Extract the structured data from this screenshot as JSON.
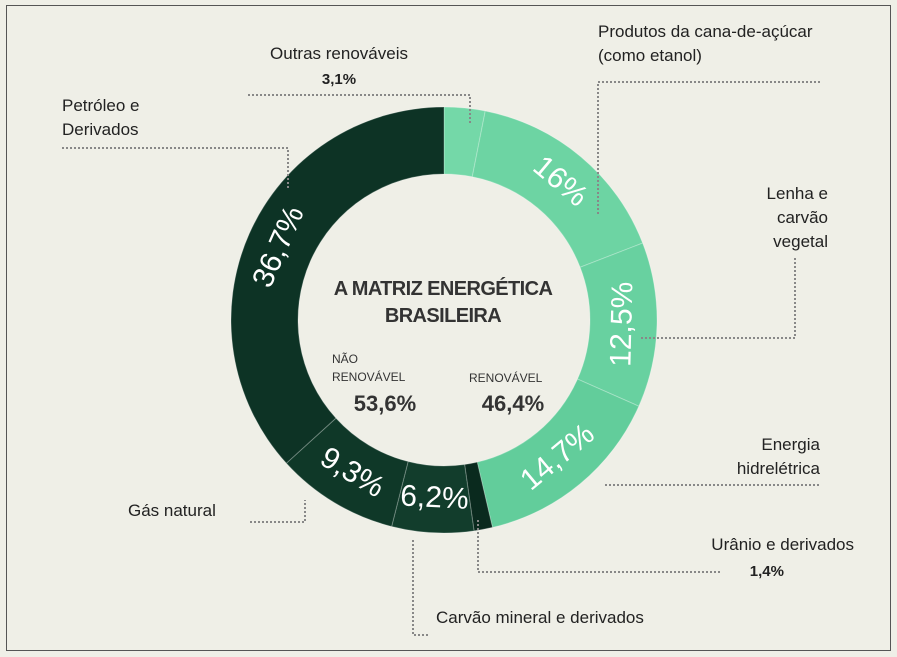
{
  "chart_data": {
    "type": "donut",
    "title": "A MATRIZ ENERGÉTICA BRASILEIRA",
    "categories": [
      "Outras renováveis",
      "Produtos da cana-de-açúcar (como etanol)",
      "Lenha e carvão vegetal",
      "Energia hidrelétrica",
      "Urânio e derivados",
      "Carvão mineral e derivados",
      "Gás natural",
      "Petróleo e Derivados"
    ],
    "values": [
      3.1,
      16,
      12.5,
      14.7,
      1.4,
      6.2,
      9.3,
      36.7
    ],
    "value_labels": [
      "3,1%",
      "16%",
      "12,5%",
      "14,7%",
      "1,4%",
      "6,2%",
      "9,3%",
      "36,7%"
    ],
    "colors": [
      "#74d8a8",
      "#6dd4a3",
      "#68d1a0",
      "#62cd9b",
      "#0a2a1e",
      "#123d2c",
      "#0f3828",
      "#0d3325"
    ],
    "groups": [
      {
        "name": "NÃO RENOVÁVEL",
        "value": 53.6,
        "value_label": "53,6%"
      },
      {
        "name": "RENOVÁVEL",
        "value": 46.4,
        "value_label": "46,4%"
      }
    ]
  }
}
